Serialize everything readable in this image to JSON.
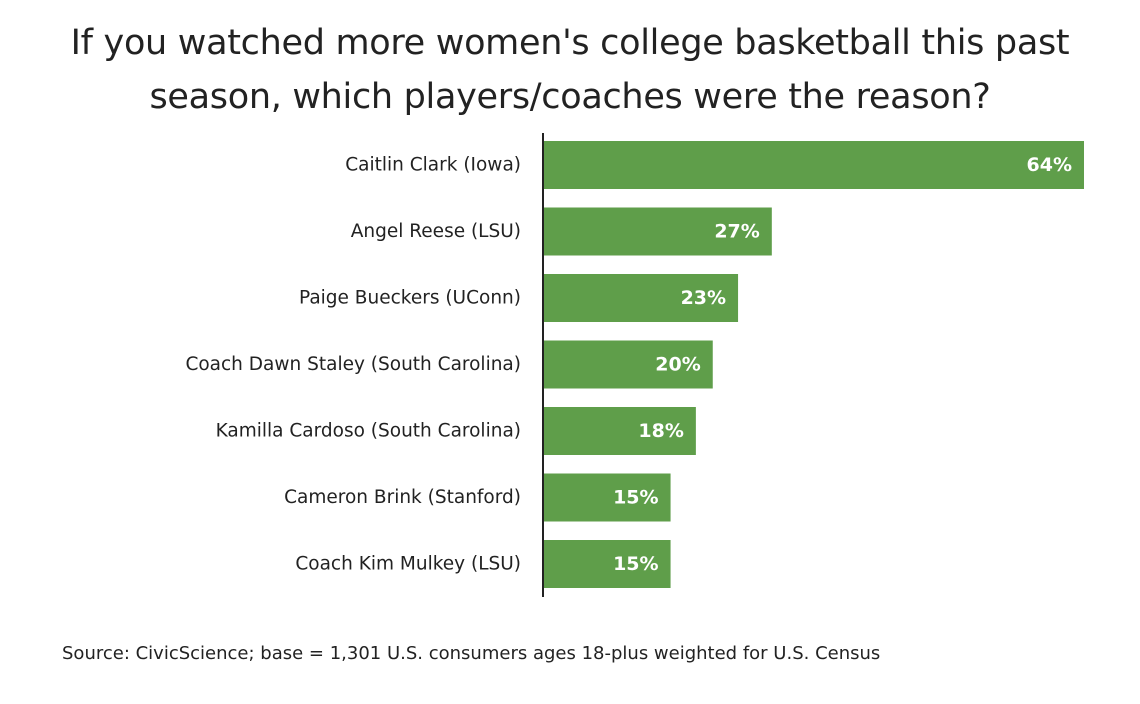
{
  "chart_data": {
    "type": "bar",
    "orientation": "horizontal",
    "title_lines": [
      "If you watched more women's college basketball this past",
      "season, which players/coaches were the reason?"
    ],
    "categories": [
      "Caitlin Clark (Iowa)",
      "Angel Reese (LSU)",
      "Paige Bueckers (UConn)",
      "Coach Dawn Staley (South Carolina)",
      "Kamilla Cardoso (South Carolina)",
      "Cameron Brink (Stanford)",
      "Coach Kim Mulkey (LSU)"
    ],
    "values": [
      64,
      27,
      23,
      20,
      18,
      15,
      15
    ],
    "value_labels": [
      "64%",
      "27%",
      "23%",
      "20%",
      "18%",
      "15%",
      "15%"
    ],
    "value_unit": "%",
    "bar_color": "#5f9e4a",
    "value_label_color": "#ffffff",
    "grid": false,
    "legend": "none",
    "source": "Source: CivicScience; base = 1,301 U.S. consumers ages 18-plus weighted for U.S. Census"
  }
}
